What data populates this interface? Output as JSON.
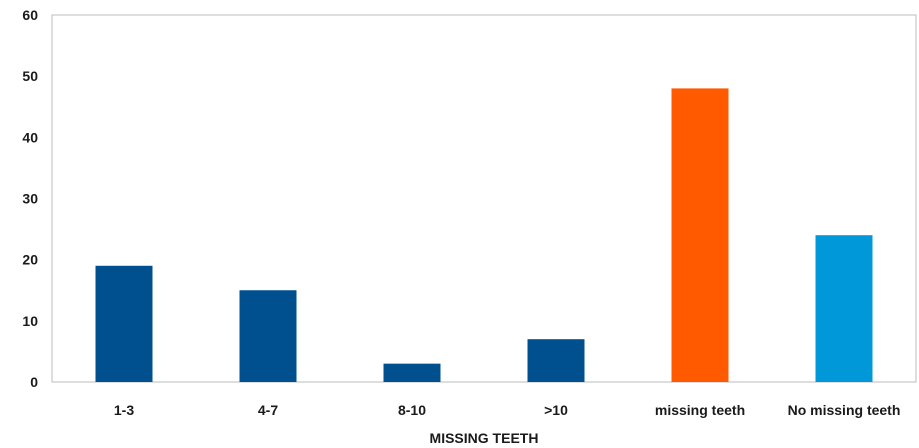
{
  "chart_data": {
    "type": "bar",
    "title": "",
    "xlabel": "MISSING TEETH",
    "ylabel": "",
    "ylim": [
      0,
      60
    ],
    "yticks": [
      0,
      10,
      20,
      30,
      40,
      50,
      60
    ],
    "grid": false,
    "categories": [
      "1-3",
      "4-7",
      "8-10",
      ">10",
      "missing teeth",
      "No missing teeth"
    ],
    "values": [
      19,
      15,
      3,
      7,
      48,
      24
    ],
    "colors": [
      "#00508f",
      "#00508f",
      "#00508f",
      "#00508f",
      "#ff5a00",
      "#0098d9"
    ]
  }
}
